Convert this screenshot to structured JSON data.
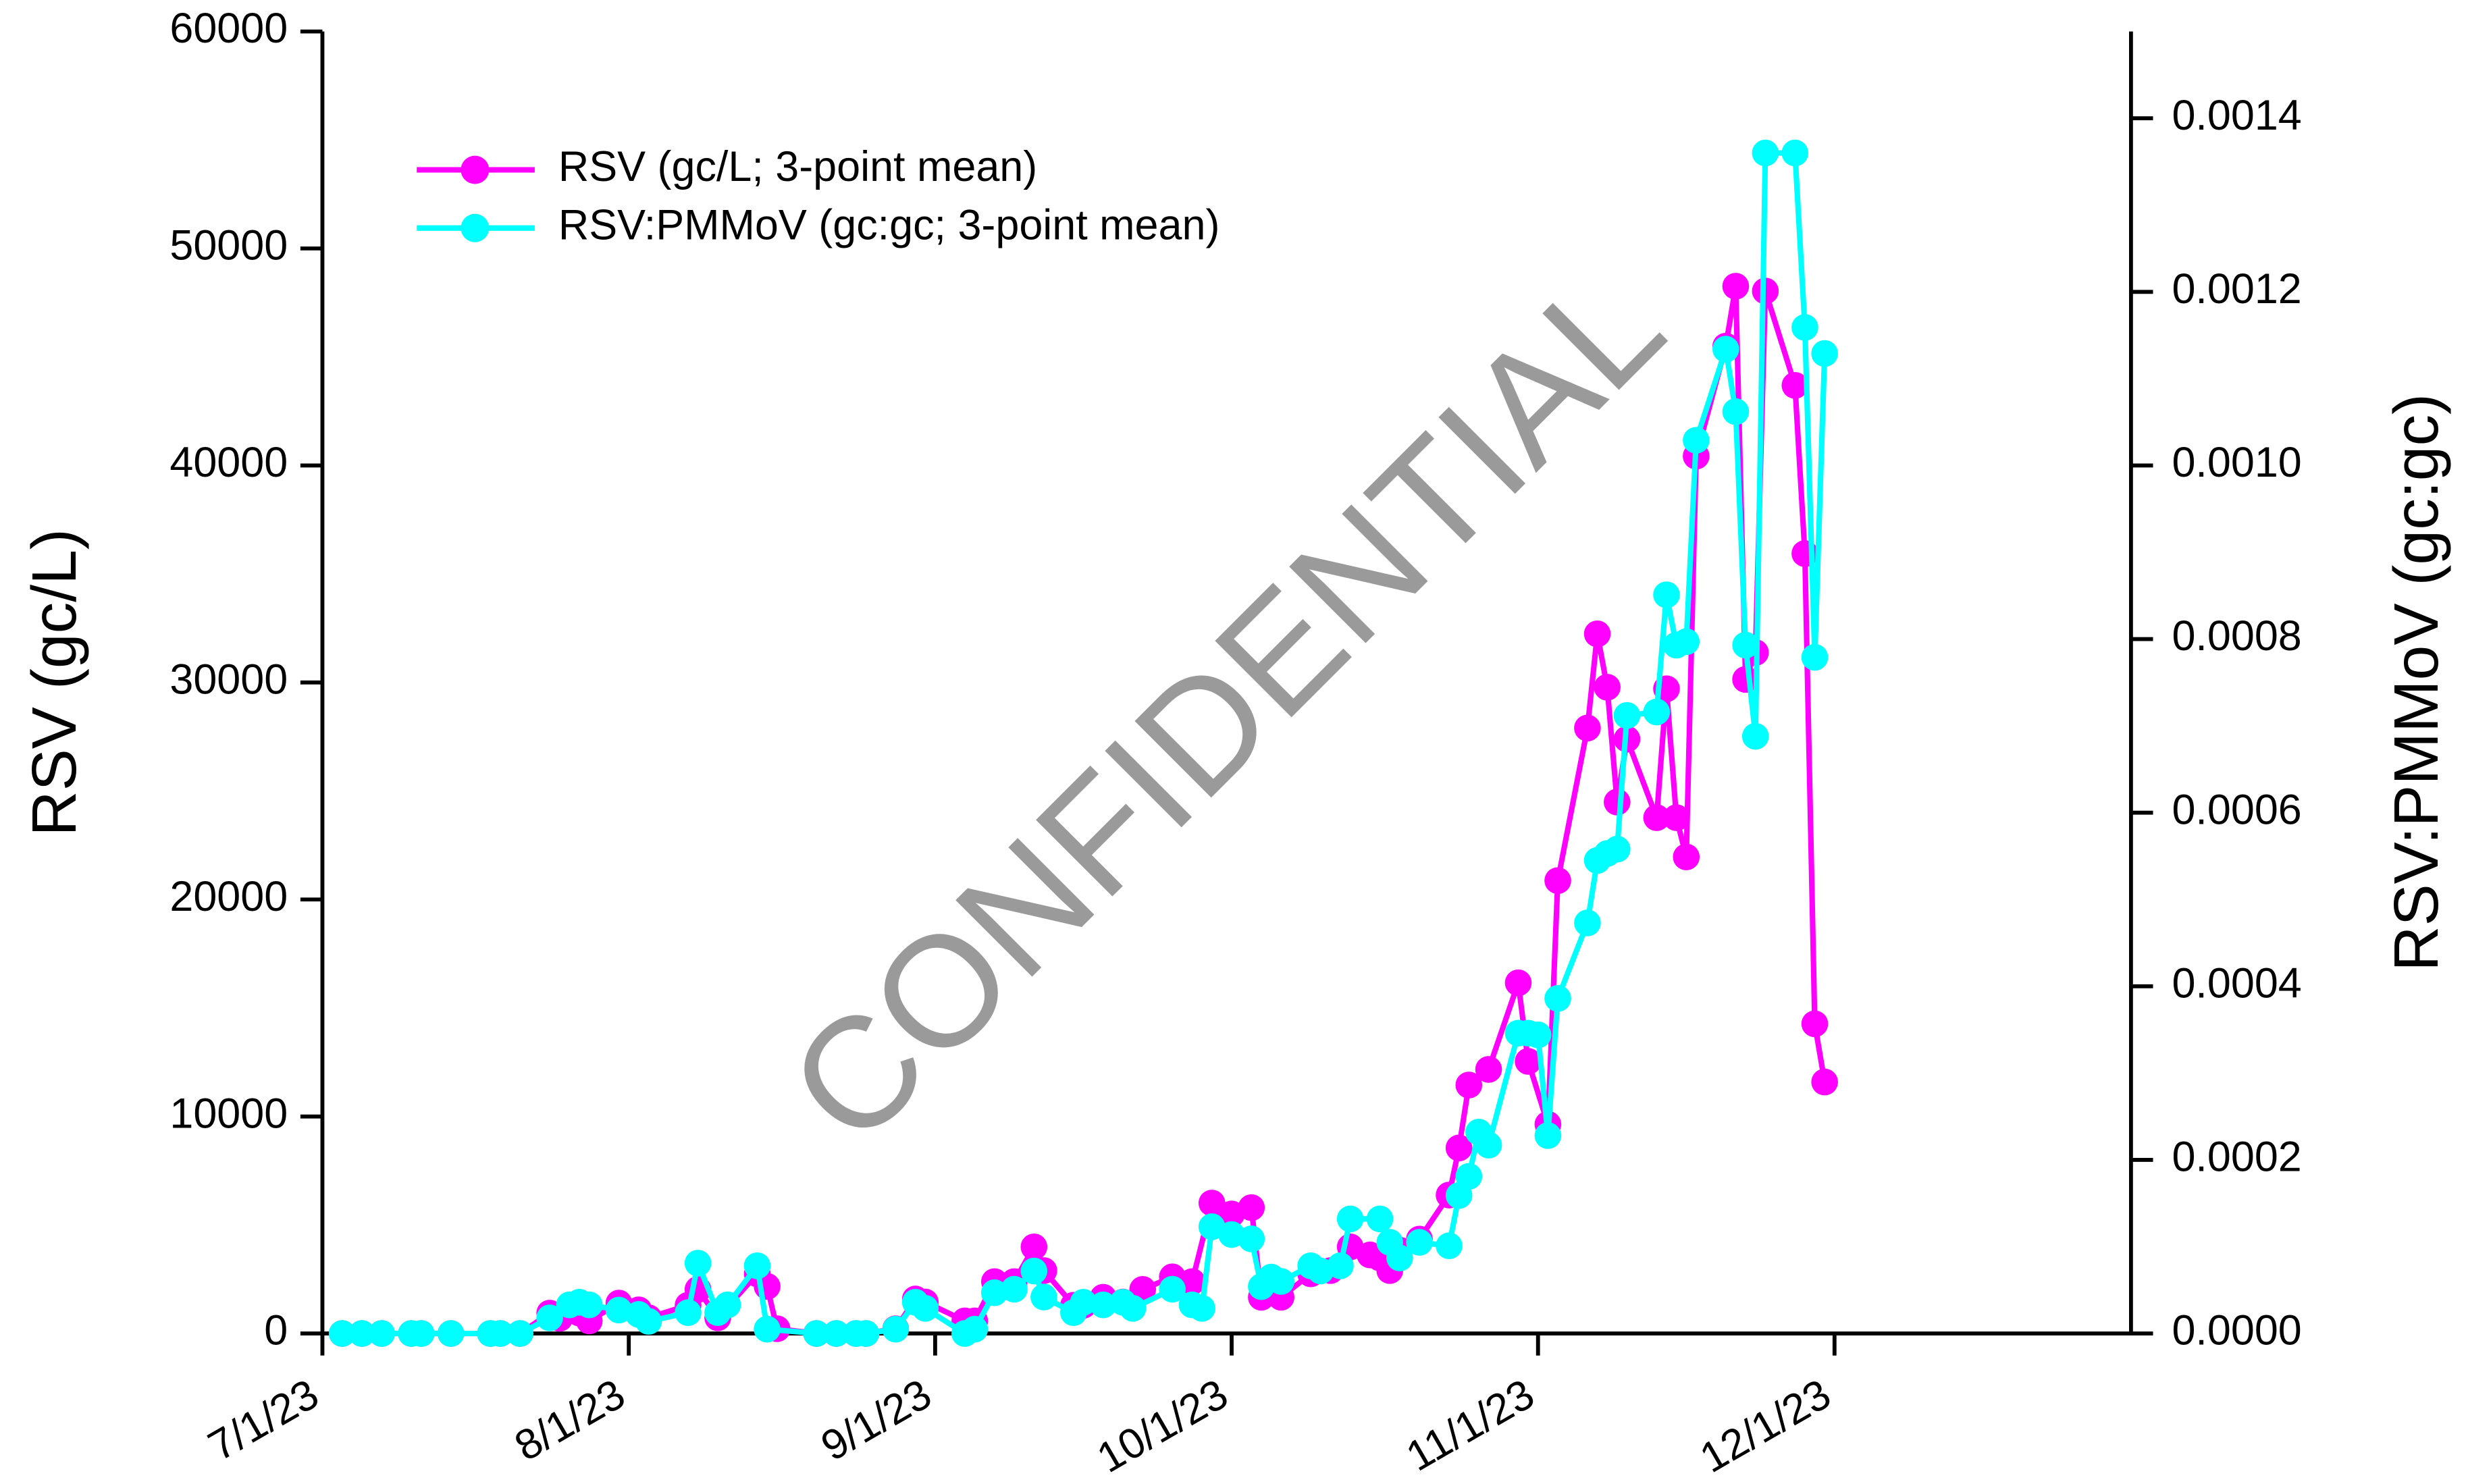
{
  "chart_data": {
    "type": "line",
    "watermark": "CONFIDENTIAL",
    "y_label": "RSV (gc/L)",
    "y2_label": "RSV:PMMoV (gc:gc)",
    "xlim": [
      "7/1/23",
      "12/31/23"
    ],
    "xticks": [
      "7/1/23",
      "8/1/23",
      "9/1/23",
      "10/1/23",
      "11/1/23",
      "12/1/23"
    ],
    "ylim": [
      0,
      60000
    ],
    "yticks": [
      0,
      10000,
      20000,
      30000,
      40000,
      50000,
      60000
    ],
    "y2lim": [
      0,
      0.0015
    ],
    "y2ticks": [
      {
        "value": 0,
        "label": "0.0000"
      },
      {
        "value": 0.0002,
        "label": "0.0002"
      },
      {
        "value": 0.0004,
        "label": "0.0004"
      },
      {
        "value": 0.0006,
        "label": "0.0006"
      },
      {
        "value": 0.0008,
        "label": "0.0008"
      },
      {
        "value": 0.001,
        "label": "0.0010"
      },
      {
        "value": 0.0012,
        "label": "0.0012"
      },
      {
        "value": 0.0014,
        "label": "0.0014"
      }
    ],
    "legend": "upper left",
    "series": [
      {
        "name": "RSV (gc/L; 3-point mean)",
        "color": "#ff00ff",
        "axis": "y",
        "x": [
          "7/3/23",
          "7/5/23",
          "7/7/23",
          "7/10/23",
          "7/11/23",
          "7/14/23",
          "7/18/23",
          "7/19/23",
          "7/21/23",
          "7/24/23",
          "7/25/23",
          "7/27/23",
          "7/28/23",
          "7/31/23",
          "8/2/23",
          "8/3/23",
          "8/7/23",
          "8/8/23",
          "8/10/23",
          "8/14/23",
          "8/15/23",
          "8/16/23",
          "8/20/23",
          "8/22/23",
          "8/24/23",
          "8/25/23",
          "8/28/23",
          "8/30/23",
          "8/31/23",
          "9/4/23",
          "9/5/23",
          "9/7/23",
          "9/9/23",
          "9/11/23",
          "9/12/23",
          "9/15/23",
          "9/16/23",
          "9/18/23",
          "9/20/23",
          "9/22/23",
          "9/25/23",
          "9/27/23",
          "9/29/23",
          "10/1/23",
          "10/3/23",
          "10/4/23",
          "10/6/23",
          "10/9/23",
          "10/11/23",
          "10/13/23",
          "10/15/23",
          "10/16/23",
          "10/17/23",
          "10/18/23",
          "10/20/23",
          "10/23/23",
          "10/24/23",
          "10/25/23",
          "10/27/23",
          "10/30/23",
          "10/31/23",
          "11/2/23",
          "11/3/23",
          "11/6/23",
          "11/7/23",
          "11/8/23",
          "11/9/23",
          "11/10/23",
          "11/13/23",
          "11/14/23",
          "11/15/23",
          "11/16/23",
          "11/17/23",
          "11/20/23",
          "11/21/23",
          "11/22/23",
          "11/23/23",
          "11/24/23",
          "11/27/23",
          "11/28/23",
          "11/29/23",
          "11/30/23"
        ],
        "values": [
          0,
          0,
          0,
          0,
          0,
          0,
          0,
          0,
          0,
          940,
          700,
          940,
          580,
          1400,
          1090,
          725,
          1300,
          2030,
          725,
          2750,
          2170,
          220,
          0,
          0,
          0,
          0,
          220,
          1590,
          1450,
          580,
          580,
          2390,
          2390,
          3990,
          2900,
          1300,
          1300,
          1670,
          1450,
          2030,
          2610,
          2390,
          6010,
          5510,
          5800,
          1670,
          1670,
          2750,
          2900,
          3990,
          3620,
          3480,
          2900,
          3840,
          4350,
          6380,
          8550,
          11450,
          12170,
          16160,
          12540,
          9640,
          20870,
          27900,
          32240,
          29780,
          24490,
          27390,
          23770,
          29710,
          23770,
          21960,
          40430,
          45500,
          48260,
          30140,
          31380,
          48040,
          43690,
          35940,
          14270,
          11590
        ]
      },
      {
        "name": "RSV:PMMoV (gc:gc; 3-point mean)",
        "color": "#00ffff",
        "axis": "y2",
        "x": [
          "7/3/23",
          "7/5/23",
          "7/7/23",
          "7/10/23",
          "7/11/23",
          "7/14/23",
          "7/18/23",
          "7/19/23",
          "7/21/23",
          "7/24/23",
          "7/26/23",
          "7/27/23",
          "7/28/23",
          "7/31/23",
          "8/2/23",
          "8/3/23",
          "8/7/23",
          "8/8/23",
          "8/10/23",
          "8/11/23",
          "8/14/23",
          "8/15/23",
          "8/20/23",
          "8/22/23",
          "8/24/23",
          "8/25/23",
          "8/28/23",
          "8/30/23",
          "8/31/23",
          "9/4/23",
          "9/5/23",
          "9/7/23",
          "9/9/23",
          "9/11/23",
          "9/12/23",
          "9/15/23",
          "9/16/23",
          "9/18/23",
          "9/20/23",
          "9/21/23",
          "9/25/23",
          "9/27/23",
          "9/28/23",
          "9/29/23",
          "10/1/23",
          "10/3/23",
          "10/4/23",
          "10/5/23",
          "10/6/23",
          "10/9/23",
          "10/10/23",
          "10/12/23",
          "10/13/23",
          "10/16/23",
          "10/17/23",
          "10/18/23",
          "10/20/23",
          "10/23/23",
          "10/24/23",
          "10/25/23",
          "10/26/23",
          "10/27/23",
          "10/30/23",
          "10/31/23",
          "11/1/23",
          "11/2/23",
          "11/3/23",
          "11/6/23",
          "11/7/23",
          "11/8/23",
          "11/9/23",
          "11/10/23",
          "11/13/23",
          "11/14/23",
          "11/15/23",
          "11/16/23",
          "11/17/23",
          "11/20/23",
          "11/21/23",
          "11/22/23",
          "11/23/23",
          "11/24/23",
          "11/27/23",
          "11/28/23",
          "11/29/23",
          "11/30/23"
        ],
        "values": [
          0,
          0,
          0,
          0,
          0,
          0,
          0,
          0,
          0,
          1.8e-05,
          3.3e-05,
          3.6e-05,
          3.3e-05,
          2.7e-05,
          2.2e-05,
          1.4e-05,
          2.4e-05,
          8.1e-05,
          2.4e-05,
          3.3e-05,
          7.8e-05,
          5e-06,
          0,
          0,
          0,
          0,
          5e-06,
          3.6e-05,
          2.9e-05,
          0,
          5e-06,
          4.7e-05,
          5.1e-05,
          7.2e-05,
          4.2e-05,
          2.4e-05,
          3.6e-05,
          3.3e-05,
          3.6e-05,
          2.9e-05,
          5.1e-05,
          3.3e-05,
          2.9e-05,
          0.000123,
          0.000114,
          0.000109,
          5.4e-05,
          6.5e-05,
          6e-05,
          7.8e-05,
          7.2e-05,
          7.8e-05,
          0.000132,
          0.000132,
          0.000105,
          8.7e-05,
          0.000105,
          0.000101,
          0.000159,
          0.000181,
          0.000232,
          0.000217,
          0.000346,
          0.000346,
          0.000344,
          0.000228,
          0.000386,
          0.000473,
          0.000545,
          0.000553,
          0.000558,
          0.000712,
          0.000716,
          0.000851,
          0.000793,
          0.000797,
          0.001029,
          0.001134,
          0.001062,
          0.000793,
          0.000688,
          0.00136,
          0.00136,
          0.001159,
          0.000779,
          0.001129
        ]
      }
    ]
  }
}
